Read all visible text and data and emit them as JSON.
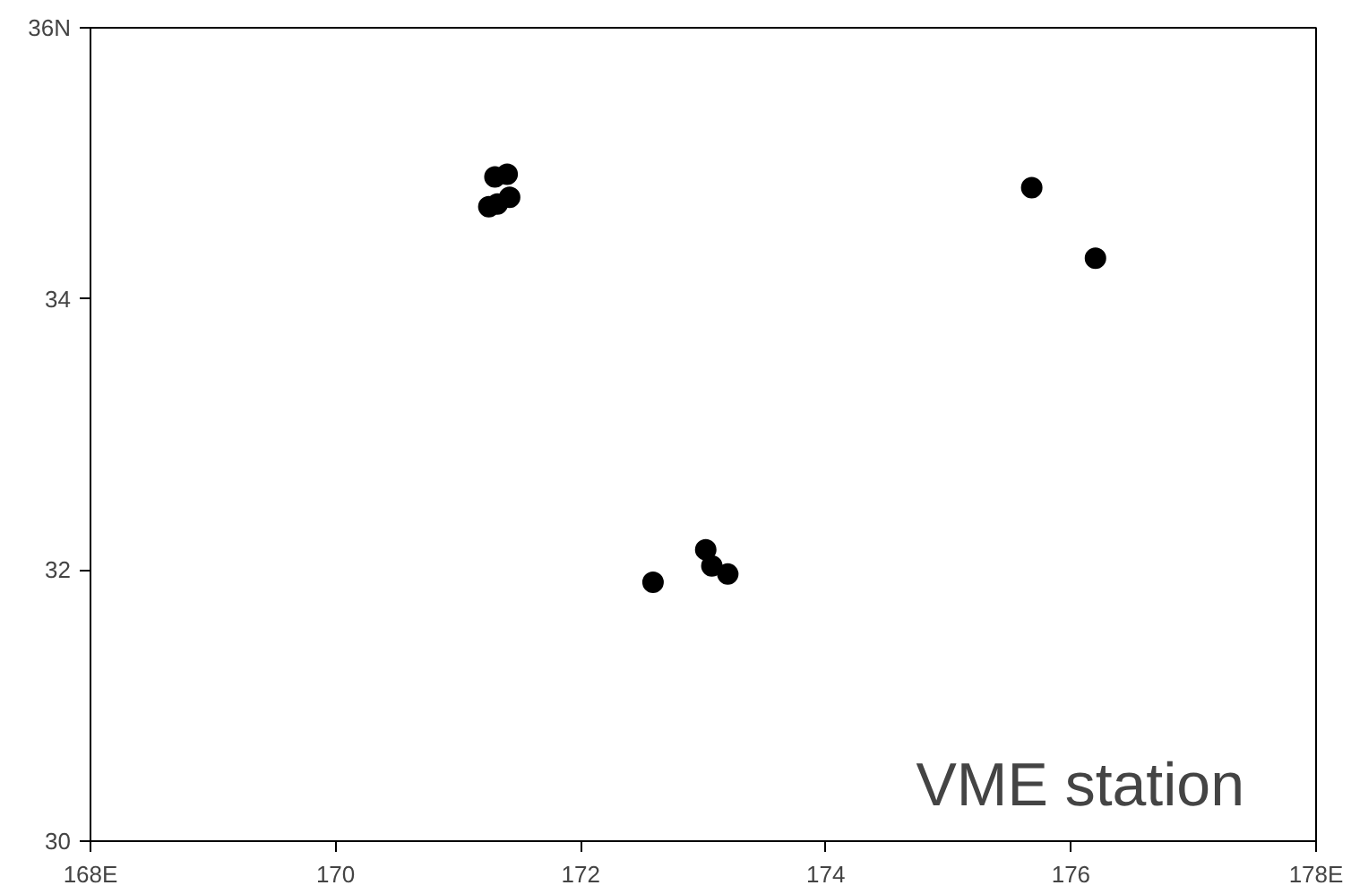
{
  "chart_data": {
    "type": "scatter",
    "marker": "circle",
    "grid": false,
    "x": [
      171.42,
      171.25,
      171.32,
      171.3,
      171.4,
      172.59,
      173.02,
      173.07,
      173.2,
      175.68,
      176.2
    ],
    "series": [
      {
        "color": "#000000",
        "values": [
          34.75,
          34.68,
          34.7,
          34.9,
          34.92,
          31.91,
          32.15,
          32.03,
          31.97,
          34.82,
          34.3
        ]
      }
    ],
    "xlim": [
      168,
      178
    ],
    "ylim": [
      30,
      36
    ],
    "xticks": [
      {
        "value": 168,
        "label": "168E"
      },
      170,
      172,
      174,
      176,
      {
        "value": 178,
        "label": "178E"
      }
    ],
    "yticks": [
      30,
      32,
      34,
      {
        "value": 36,
        "label": "36N"
      }
    ],
    "annotations": [
      "VME station"
    ]
  }
}
